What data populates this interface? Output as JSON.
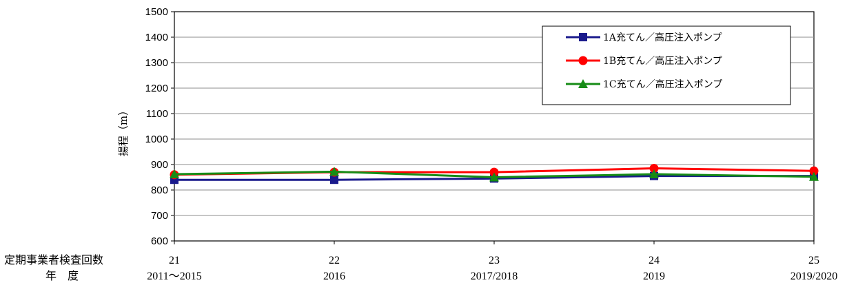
{
  "chart_data": {
    "type": "line",
    "title": "",
    "ylabel": "揚程（m）",
    "xlabel": "",
    "ylim": [
      600,
      1500
    ],
    "yticks": [
      600,
      700,
      800,
      900,
      1000,
      1100,
      1200,
      1300,
      1400,
      1500
    ],
    "row_labels": [
      "定期事業者検査回数",
      "年　度"
    ],
    "categories": [
      "21",
      "22",
      "23",
      "24",
      "25"
    ],
    "categories_year": [
      "2011～2015",
      "2016",
      "2017/2018",
      "2019",
      "2019/2020"
    ],
    "grid": true,
    "legend_position": "top-right",
    "series": [
      {
        "name": "1A充てん／高圧注入ポンプ",
        "color": "#1a1a8c",
        "marker": "square",
        "values": [
          840,
          840,
          845,
          855,
          855
        ]
      },
      {
        "name": "1B充てん／高圧注入ポンプ",
        "color": "#ff0000",
        "marker": "circle",
        "values": [
          860,
          870,
          870,
          885,
          875
        ]
      },
      {
        "name": "1C充てん／高圧注入ポンプ",
        "color": "#168c16",
        "marker": "triangle",
        "values": [
          862,
          872,
          850,
          862,
          852
        ]
      }
    ]
  }
}
